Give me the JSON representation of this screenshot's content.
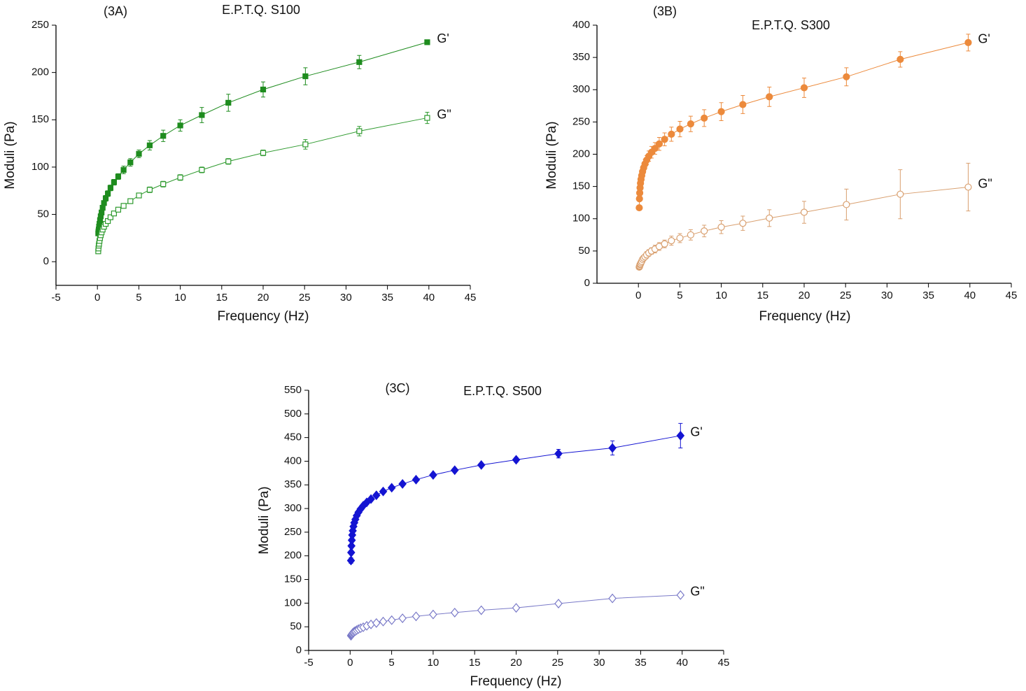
{
  "chart_data": [
    {
      "type": "line",
      "panel_label": "(3A)",
      "title": "E.P.T.Q. S100",
      "x_label": "Frequency (Hz)",
      "y_label": "Moduli (Pa)",
      "x": [
        0.1,
        0.126,
        0.158,
        0.2,
        0.251,
        0.316,
        0.398,
        0.501,
        0.631,
        0.794,
        1,
        1.26,
        1.58,
        2,
        2.51,
        3.16,
        3.98,
        5.01,
        6.31,
        7.94,
        10,
        12.6,
        15.8,
        20,
        25.1,
        31.6,
        39.8
      ],
      "xlim": [
        -5,
        45
      ],
      "xticks": [
        -5,
        0,
        5,
        10,
        15,
        20,
        25,
        30,
        35,
        40,
        45
      ],
      "ylim": [
        -25,
        250
      ],
      "yticks": [
        0,
        50,
        100,
        150,
        200,
        250
      ],
      "series": [
        {
          "name": "G'",
          "color": "#1e8c1e",
          "marker": "square",
          "filled": true,
          "values": [
            30,
            32,
            34,
            37,
            40,
            44,
            48,
            52,
            57,
            62,
            67,
            72,
            78,
            84,
            90,
            97,
            105,
            114,
            123,
            133,
            144,
            155,
            168,
            182,
            196,
            211,
            232
          ],
          "errors": [
            2,
            2,
            2,
            2,
            2,
            2,
            2,
            2,
            2,
            2,
            3,
            3,
            3,
            3,
            3,
            4,
            4,
            4,
            5,
            6,
            6,
            8,
            9,
            8,
            9,
            7,
            2
          ]
        },
        {
          "name": "G\"",
          "color": "#2e9a2e",
          "marker": "square",
          "filled": false,
          "values": [
            11,
            14,
            17,
            19,
            22,
            25,
            28,
            31,
            34,
            37,
            40,
            43,
            47,
            51,
            55,
            59,
            64,
            70,
            76,
            82,
            89,
            97,
            106,
            115,
            124,
            138,
            152
          ],
          "errors": [
            2,
            2,
            2,
            2,
            2,
            2,
            2,
            2,
            2,
            2,
            2,
            2,
            2,
            2,
            2,
            2,
            2,
            2,
            3,
            3,
            3,
            3,
            3,
            3,
            5,
            5,
            6
          ]
        }
      ]
    },
    {
      "type": "line",
      "panel_label": "(3B)",
      "title": "E.P.T.Q. S300",
      "x_label": "Frequency (Hz)",
      "y_label": "Moduli (Pa)",
      "x": [
        0.1,
        0.126,
        0.158,
        0.2,
        0.251,
        0.316,
        0.398,
        0.501,
        0.631,
        0.794,
        1,
        1.26,
        1.58,
        2,
        2.51,
        3.16,
        3.98,
        5.01,
        6.31,
        7.94,
        10,
        12.6,
        15.8,
        20,
        25.1,
        31.6,
        39.8
      ],
      "xlim": [
        -5,
        45
      ],
      "xticks": [
        0,
        5,
        10,
        15,
        20,
        25,
        30,
        35,
        40,
        45
      ],
      "ylim": [
        0,
        400
      ],
      "yticks": [
        0,
        50,
        100,
        150,
        200,
        250,
        300,
        350,
        400
      ],
      "series": [
        {
          "name": "G'",
          "color": "#ec8a3c",
          "marker": "circle",
          "filled": true,
          "values": [
            117,
            131,
            140,
            148,
            155,
            161,
            167,
            173,
            179,
            185,
            191,
            197,
            203,
            209,
            216,
            223,
            231,
            239,
            247,
            256,
            266,
            277,
            289,
            303,
            320,
            347,
            373
          ],
          "errors": [
            3,
            3,
            4,
            4,
            4,
            5,
            5,
            6,
            6,
            7,
            7,
            8,
            9,
            9,
            10,
            10,
            11,
            12,
            12,
            13,
            14,
            14,
            15,
            15,
            14,
            12,
            13
          ]
        },
        {
          "name": "G\"",
          "color": "#d9a070",
          "marker": "circle",
          "filled": false,
          "values": [
            25,
            26,
            27,
            29,
            30,
            32,
            34,
            37,
            39,
            41,
            44,
            47,
            50,
            53,
            57,
            61,
            66,
            70,
            75,
            81,
            87,
            93,
            101,
            110,
            122,
            138,
            149
          ],
          "errors": [
            3,
            3,
            3,
            3,
            3,
            3,
            4,
            4,
            4,
            4,
            5,
            5,
            5,
            6,
            6,
            6,
            7,
            7,
            8,
            9,
            10,
            11,
            13,
            17,
            24,
            38,
            37
          ]
        }
      ]
    },
    {
      "type": "line",
      "panel_label": "(3C)",
      "title": "E.P.T.Q. S500",
      "x_label": "Frequency (Hz)",
      "y_label": "Moduli (Pa)",
      "x": [
        0.1,
        0.126,
        0.158,
        0.2,
        0.251,
        0.316,
        0.398,
        0.501,
        0.631,
        0.794,
        1,
        1.26,
        1.58,
        2,
        2.51,
        3.16,
        3.98,
        5.01,
        6.31,
        7.94,
        10,
        12.6,
        15.8,
        20,
        25.1,
        31.6,
        39.8
      ],
      "xlim": [
        -5,
        45
      ],
      "xticks": [
        -5,
        0,
        5,
        10,
        15,
        20,
        25,
        30,
        35,
        40,
        45
      ],
      "ylim": [
        0,
        550
      ],
      "yticks": [
        0,
        50,
        100,
        150,
        200,
        250,
        300,
        350,
        400,
        450,
        500,
        550
      ],
      "series": [
        {
          "name": "G'",
          "color": "#1414d2",
          "marker": "diamond",
          "filled": true,
          "values": [
            190,
            207,
            221,
            233,
            244,
            253,
            262,
            270,
            277,
            285,
            292,
            299,
            306,
            313,
            320,
            328,
            336,
            344,
            352,
            361,
            371,
            381,
            392,
            403,
            416,
            428,
            454
          ],
          "errors": [
            6,
            3,
            3,
            3,
            3,
            3,
            3,
            3,
            3,
            3,
            3,
            3,
            3,
            3,
            3,
            3,
            3,
            3,
            3,
            3,
            3,
            4,
            4,
            5,
            9,
            15,
            26
          ]
        },
        {
          "name": "G\"",
          "color": "#7a7ac8",
          "marker": "diamond",
          "filled": false,
          "values": [
            31,
            32,
            33,
            34,
            35,
            37,
            38,
            40,
            41,
            43,
            45,
            47,
            49,
            52,
            55,
            58,
            61,
            64,
            68,
            72,
            76,
            80,
            85,
            90,
            99,
            110,
            117
          ],
          "errors": [
            2,
            2,
            2,
            2,
            2,
            2,
            2,
            2,
            2,
            2,
            2,
            2,
            2,
            2,
            2,
            2,
            2,
            2,
            2,
            2,
            2,
            2,
            2,
            2,
            3,
            3,
            3
          ]
        }
      ]
    }
  ]
}
